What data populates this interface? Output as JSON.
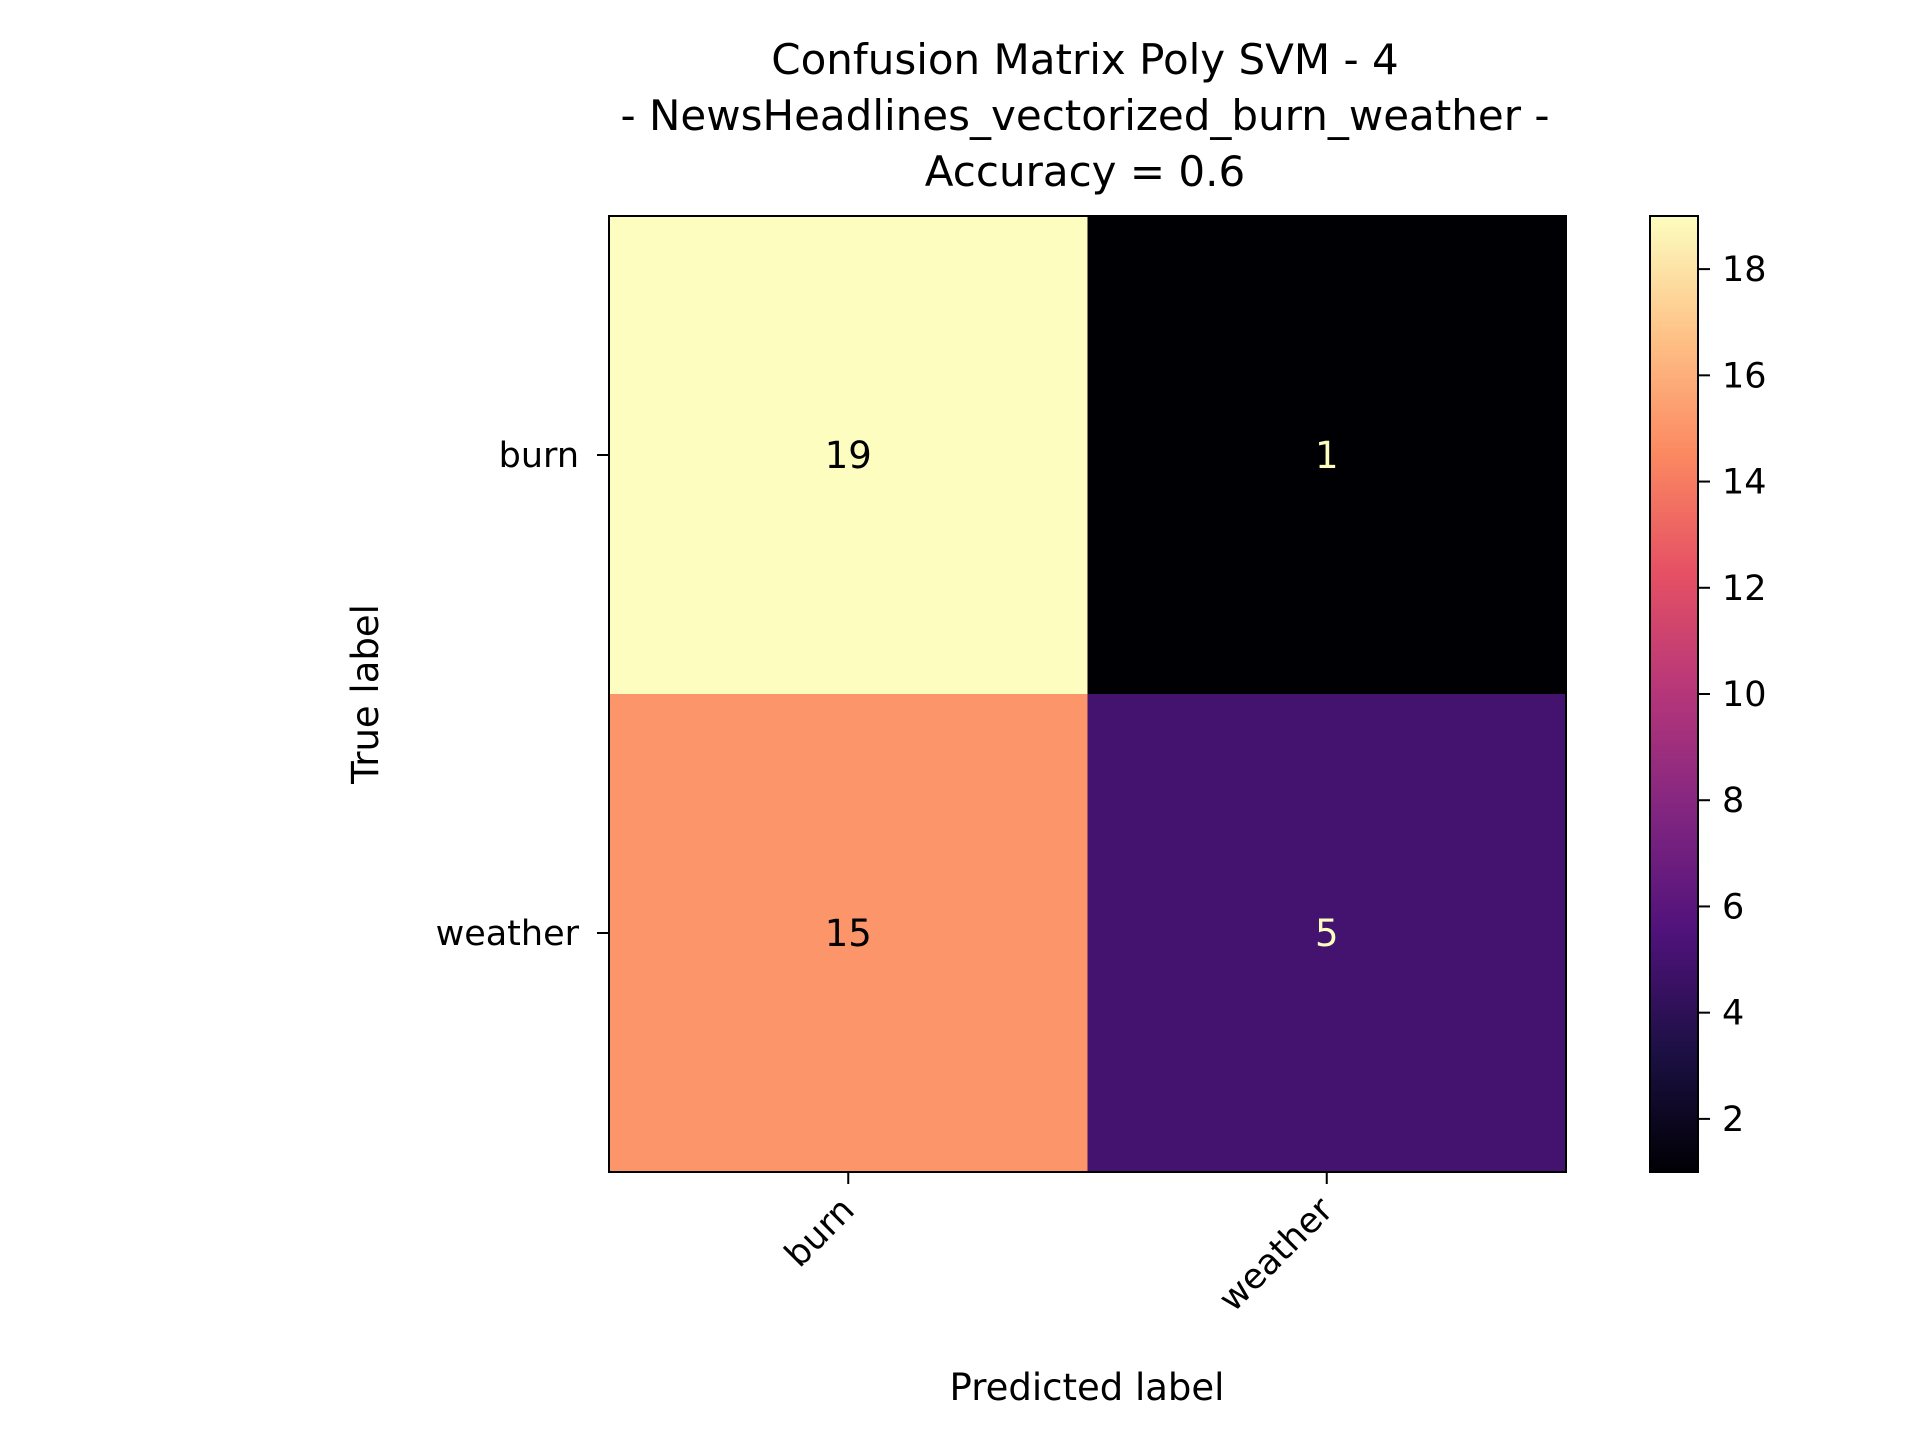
{
  "chart_data": {
    "type": "heatmap",
    "title_lines": [
      "Confusion Matrix Poly SVM - 4",
      "- NewsHeadlines_vectorized_burn_weather -",
      "Accuracy = 0.6"
    ],
    "xlabel": "Predicted label",
    "ylabel": "True label",
    "x_categories": [
      "burn",
      "weather"
    ],
    "y_categories": [
      "burn",
      "weather"
    ],
    "matrix": [
      [
        19,
        1
      ],
      [
        15,
        5
      ]
    ],
    "colormap": "magma",
    "colorbar": {
      "min": 1,
      "max": 19,
      "ticks": [
        2,
        4,
        6,
        8,
        10,
        12,
        14,
        16,
        18
      ]
    },
    "grid": false
  },
  "colors": {
    "high_text": "#000000",
    "low_text": "#fcfdbf"
  }
}
